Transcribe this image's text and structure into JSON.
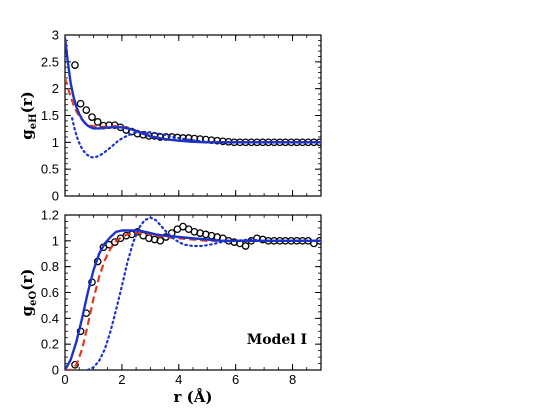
{
  "chart_data": [
    {
      "type": "line",
      "id": "top",
      "ylabel_main": "g",
      "ylabel_sub": "eH",
      "ylabel_suffix": "(r)",
      "xlim": [
        0,
        9
      ],
      "ylim": [
        0,
        3
      ],
      "xticks": [
        0,
        2,
        4,
        6,
        8
      ],
      "yticks": [
        0,
        0.5,
        1,
        1.5,
        2,
        2.5,
        3
      ],
      "ytick_labels": [
        "0",
        "0.5",
        "1",
        "1.5",
        "2",
        "2.5",
        "3"
      ],
      "x_minor_step": 0.5,
      "y_minor_step": 0.1,
      "series": [
        {
          "style": "circles",
          "color": "#000000",
          "x": [
            0.35,
            0.55,
            0.75,
            0.95,
            1.15,
            1.35,
            1.55,
            1.75,
            1.95,
            2.15,
            2.35,
            2.55,
            2.75,
            2.95,
            3.15,
            3.35,
            3.55,
            3.75,
            3.95,
            4.15,
            4.35,
            4.55,
            4.75,
            4.95,
            5.15,
            5.35,
            5.55,
            5.75,
            5.95,
            6.15,
            6.35,
            6.55,
            6.75,
            6.95,
            7.15,
            7.35,
            7.55,
            7.75,
            7.95,
            8.15,
            8.35,
            8.55,
            8.75,
            8.95
          ],
          "y": [
            2.44,
            1.72,
            1.6,
            1.47,
            1.38,
            1.31,
            1.32,
            1.32,
            1.28,
            1.23,
            1.2,
            1.16,
            1.14,
            1.12,
            1.12,
            1.1,
            1.1,
            1.1,
            1.09,
            1.08,
            1.08,
            1.07,
            1.06,
            1.05,
            1.04,
            1.03,
            1.02,
            1.01,
            1.0,
            1.0,
            1.0,
            1.0,
            1.0,
            1.0,
            1.0,
            1.0,
            1.0,
            1.0,
            1.0,
            1.0,
            1.0,
            1.0,
            1.0,
            1.0
          ]
        },
        {
          "style": "dashed",
          "color": "#dd3a1e",
          "x": [
            0,
            0.1,
            0.2,
            0.3,
            0.4,
            0.5,
            0.6,
            0.7,
            0.8,
            0.9,
            1.0,
            1.1,
            1.2,
            1.4,
            1.6,
            1.8,
            2.0,
            2.2,
            2.4,
            2.6,
            2.8,
            3.0,
            3.5,
            4.0,
            4.5,
            5.0,
            5.5,
            6.0,
            7.0,
            8.0,
            9.0
          ],
          "y": [
            2.2,
            2.02,
            1.85,
            1.7,
            1.58,
            1.49,
            1.42,
            1.37,
            1.33,
            1.31,
            1.3,
            1.29,
            1.29,
            1.29,
            1.3,
            1.3,
            1.29,
            1.27,
            1.24,
            1.2,
            1.16,
            1.12,
            1.06,
            1.03,
            1.01,
            1.0,
            1.0,
            1.0,
            1.0,
            1.0,
            1.0
          ]
        },
        {
          "style": "solid",
          "color": "#1c33c9",
          "x": [
            0,
            0.1,
            0.2,
            0.3,
            0.4,
            0.5,
            0.6,
            0.7,
            0.8,
            0.9,
            1.0,
            1.1,
            1.2,
            1.4,
            1.6,
            1.8,
            2.0,
            2.2,
            2.4,
            2.6,
            2.8,
            3.0,
            3.5,
            4.0,
            4.5,
            5.0,
            5.5,
            6.0,
            7.0,
            8.0,
            9.0
          ],
          "y": [
            2.95,
            2.5,
            2.1,
            1.85,
            1.66,
            1.53,
            1.43,
            1.36,
            1.31,
            1.28,
            1.26,
            1.26,
            1.26,
            1.27,
            1.28,
            1.28,
            1.28,
            1.26,
            1.23,
            1.19,
            1.15,
            1.11,
            1.06,
            1.03,
            1.01,
            1.0,
            1.0,
            1.0,
            1.0,
            1.0,
            1.0
          ]
        },
        {
          "style": "dotted",
          "color": "#1c33c9",
          "x": [
            0.25,
            0.35,
            0.45,
            0.55,
            0.65,
            0.75,
            0.85,
            0.95,
            1.05,
            1.15,
            1.3,
            1.5,
            1.7,
            1.9,
            2.1,
            2.3,
            2.5,
            2.7,
            2.9,
            3.1,
            3.3,
            3.5,
            3.8,
            4.2,
            4.6,
            5.0,
            5.5,
            6.0,
            7.0,
            8.0,
            9.0
          ],
          "y": [
            1.45,
            1.22,
            1.05,
            0.93,
            0.84,
            0.78,
            0.74,
            0.72,
            0.72,
            0.74,
            0.78,
            0.86,
            0.95,
            1.04,
            1.1,
            1.15,
            1.18,
            1.19,
            1.19,
            1.18,
            1.16,
            1.14,
            1.1,
            1.06,
            1.03,
            1.01,
            1.0,
            1.0,
            1.0,
            1.0,
            1.0
          ]
        }
      ]
    },
    {
      "type": "line",
      "id": "bottom",
      "xlabel": "r (Å)",
      "ylabel_main": "g",
      "ylabel_sub": "eO",
      "ylabel_suffix": "(r)",
      "annotation": "Model I",
      "xlim": [
        0,
        9
      ],
      "ylim": [
        0,
        1.2
      ],
      "xticks": [
        0,
        2,
        4,
        6,
        8
      ],
      "yticks": [
        0,
        0.2,
        0.4,
        0.6,
        0.8,
        1,
        1.2
      ],
      "ytick_labels": [
        "0",
        "0.2",
        "0.4",
        "0.6",
        "0.8",
        "1",
        "1.2"
      ],
      "x_minor_step": 0.5,
      "y_minor_step": 0.05,
      "series": [
        {
          "style": "circles",
          "color": "#000000",
          "x": [
            0.35,
            0.55,
            0.75,
            0.95,
            1.15,
            1.35,
            1.55,
            1.75,
            1.95,
            2.15,
            2.35,
            2.55,
            2.75,
            2.95,
            3.15,
            3.35,
            3.55,
            3.75,
            3.95,
            4.15,
            4.35,
            4.55,
            4.75,
            4.95,
            5.15,
            5.35,
            5.55,
            5.75,
            5.95,
            6.15,
            6.35,
            6.55,
            6.75,
            6.95,
            7.15,
            7.35,
            7.55,
            7.75,
            7.95,
            8.15,
            8.35,
            8.55,
            8.75,
            8.95
          ],
          "y": [
            0.04,
            0.3,
            0.44,
            0.68,
            0.84,
            0.95,
            0.97,
            0.99,
            1.02,
            1.04,
            1.05,
            1.07,
            1.04,
            1.02,
            1.01,
            1.0,
            1.03,
            1.06,
            1.09,
            1.11,
            1.09,
            1.07,
            1.06,
            1.05,
            1.04,
            1.03,
            1.02,
            1.0,
            0.99,
            0.98,
            0.96,
            1.0,
            1.02,
            1.01,
            1.0,
            1.0,
            1.0,
            1.0,
            1.0,
            1.0,
            1.0,
            1.0,
            0.98,
            1.0
          ]
        },
        {
          "style": "dashed",
          "color": "#dd3a1e",
          "x": [
            0,
            0.2,
            0.4,
            0.6,
            0.8,
            1.0,
            1.2,
            1.4,
            1.6,
            1.8,
            2.0,
            2.2,
            2.4,
            2.6,
            2.8,
            3.0,
            3.2,
            3.5,
            4.0,
            4.5,
            5.0,
            5.5,
            6.0,
            7.0,
            8.0,
            9.0
          ],
          "y": [
            0.0,
            0.0,
            0.04,
            0.16,
            0.35,
            0.55,
            0.72,
            0.85,
            0.94,
            1.0,
            1.03,
            1.05,
            1.06,
            1.06,
            1.06,
            1.05,
            1.04,
            1.03,
            1.02,
            1.01,
            1.0,
            1.0,
            1.0,
            1.0,
            1.0,
            1.0
          ]
        },
        {
          "style": "solid",
          "color": "#1c33c9",
          "x": [
            0,
            0.2,
            0.4,
            0.6,
            0.8,
            1.0,
            1.2,
            1.4,
            1.6,
            1.8,
            2.0,
            2.2,
            2.4,
            2.6,
            2.8,
            3.0,
            3.2,
            3.5,
            4.0,
            4.5,
            5.0,
            5.5,
            6.0,
            7.0,
            8.0,
            9.0
          ],
          "y": [
            0.0,
            0.08,
            0.22,
            0.4,
            0.6,
            0.77,
            0.9,
            0.98,
            1.03,
            1.07,
            1.08,
            1.08,
            1.08,
            1.08,
            1.07,
            1.06,
            1.05,
            1.04,
            1.03,
            1.02,
            1.01,
            1.0,
            1.0,
            1.0,
            1.0,
            1.0
          ]
        },
        {
          "style": "dotted",
          "color": "#1c33c9",
          "x": [
            0.8,
            1.0,
            1.2,
            1.4,
            1.6,
            1.8,
            2.0,
            2.2,
            2.4,
            2.6,
            2.8,
            3.0,
            3.2,
            3.4,
            3.6,
            3.8,
            4.0,
            4.2,
            4.5,
            4.8,
            5.1,
            5.5,
            6.0,
            6.5,
            7.0,
            8.0,
            9.0
          ],
          "y": [
            0.0,
            0.02,
            0.07,
            0.16,
            0.3,
            0.47,
            0.65,
            0.84,
            0.99,
            1.1,
            1.16,
            1.18,
            1.16,
            1.11,
            1.06,
            1.02,
            0.99,
            0.97,
            0.96,
            0.96,
            0.97,
            0.99,
            1.0,
            1.01,
            1.0,
            1.0,
            1.0
          ]
        }
      ]
    }
  ]
}
